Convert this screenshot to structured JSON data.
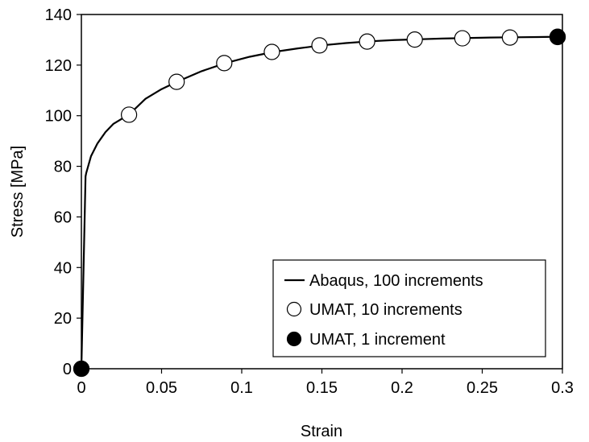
{
  "chart_data": {
    "type": "line",
    "title": "",
    "xlabel": "Strain",
    "ylabel": "Stress [MPa]",
    "xlim": [
      0,
      0.3
    ],
    "ylim": [
      0,
      140
    ],
    "xticks": [
      0,
      0.05,
      0.1,
      0.15,
      0.2,
      0.25,
      0.3
    ],
    "xtick_labels": [
      "0",
      "0.05",
      "0.1",
      "0.15",
      "0.2",
      "0.25",
      "0.3"
    ],
    "yticks": [
      0,
      20,
      40,
      60,
      80,
      100,
      120,
      140
    ],
    "ytick_labels": [
      "0",
      "20",
      "40",
      "60",
      "80",
      "100",
      "120",
      "140"
    ],
    "grid": false,
    "legend_position": "bottom-right",
    "series": [
      {
        "name": "Abaqus, 100 increments",
        "style": "line",
        "color": "#000000",
        "x": [
          0,
          0.0026,
          0.003,
          0.006,
          0.01,
          0.015,
          0.02,
          0.03,
          0.04,
          0.05,
          0.06,
          0.075,
          0.09,
          0.105,
          0.12,
          0.135,
          0.15,
          0.165,
          0.18,
          0.195,
          0.21,
          0.225,
          0.24,
          0.255,
          0.27,
          0.285,
          0.297
        ],
        "y": [
          0,
          76,
          77.3,
          84,
          89,
          93.5,
          96.8,
          100.6,
          106.7,
          110.5,
          113.5,
          117.6,
          120.8,
          123.3,
          125.2,
          126.6,
          127.8,
          128.7,
          129.4,
          129.9,
          130.2,
          130.5,
          130.7,
          130.9,
          131,
          131.1,
          131.2
        ]
      },
      {
        "name": "UMAT, 10 increments",
        "style": "markers",
        "marker": "open-circle",
        "color": "#000000",
        "x": [
          0,
          0.0297,
          0.0594,
          0.0891,
          0.1188,
          0.1485,
          0.1782,
          0.2079,
          0.2376,
          0.2673,
          0.297
        ],
        "y": [
          0,
          100.4,
          113.4,
          120.8,
          125.2,
          127.8,
          129.3,
          130.1,
          130.6,
          130.9,
          131.1
        ]
      },
      {
        "name": "UMAT, 1 increment",
        "style": "markers",
        "marker": "filled-circle",
        "color": "#000000",
        "x": [
          0,
          0.297
        ],
        "y": [
          0,
          131.2
        ]
      }
    ]
  }
}
